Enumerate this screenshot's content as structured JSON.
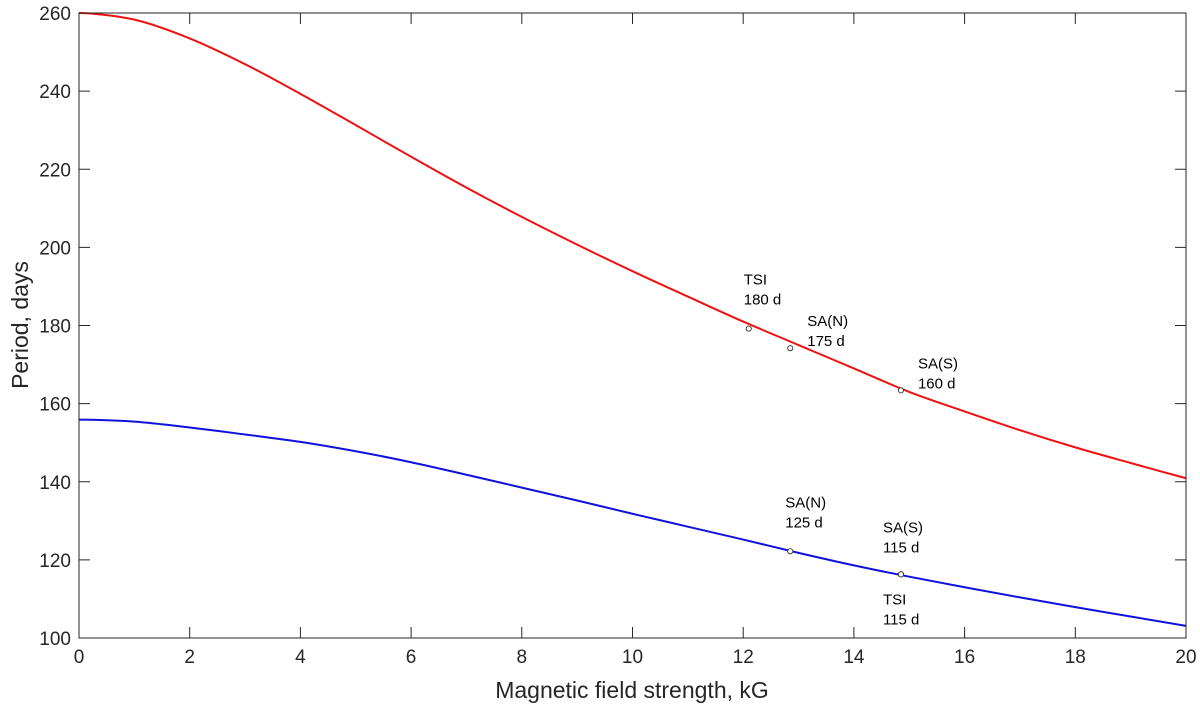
{
  "chart_data": {
    "type": "line",
    "title": "",
    "xlabel": "Magnetic field strength, kG",
    "ylabel": "Period, days",
    "xlim": [
      0,
      20
    ],
    "ylim": [
      100,
      260
    ],
    "xticks": [
      0,
      2,
      4,
      6,
      8,
      10,
      12,
      14,
      16,
      18,
      20
    ],
    "yticks": [
      100,
      120,
      140,
      160,
      180,
      200,
      220,
      240,
      260
    ],
    "grid": false,
    "series": [
      {
        "name": "upper",
        "color": "#ee1111",
        "x": [
          0,
          1,
          2,
          3,
          4,
          5,
          6,
          7,
          8,
          9,
          10,
          11,
          12,
          13,
          14,
          15,
          16,
          17,
          18,
          19,
          20
        ],
        "y": [
          260,
          258.3,
          253.5,
          246.9,
          239.3,
          231.3,
          223.2,
          215.3,
          207.8,
          200.7,
          193.9,
          187.4,
          181.0,
          175.0,
          169.0,
          163.0,
          158.0,
          153.2,
          148.8,
          144.8,
          140.9
        ]
      },
      {
        "name": "lower",
        "color": "#1111dd",
        "x": [
          0,
          1,
          2,
          3,
          4,
          5,
          6,
          7,
          8,
          9,
          10,
          11,
          12,
          13,
          14,
          15,
          16,
          17,
          18,
          19,
          20
        ],
        "y": [
          155.9,
          155.4,
          153.9,
          152.1,
          150.2,
          147.8,
          145.0,
          141.8,
          138.5,
          135.2,
          131.8,
          128.5,
          125.2,
          121.8,
          118.6,
          115.7,
          113.0,
          110.4,
          107.9,
          105.5,
          103.1
        ]
      }
    ],
    "markers": [
      {
        "x": 12.1,
        "y": 179.2,
        "lines": [
          "TSI",
          "180 d"
        ],
        "position": "above"
      },
      {
        "x": 12.85,
        "y": 174.2,
        "lines": [
          "SA(N)",
          "175 d"
        ],
        "position": "above-right"
      },
      {
        "x": 14.85,
        "y": 163.4,
        "lines": [
          "SA(S)",
          "160 d"
        ],
        "position": "above-right"
      },
      {
        "x": 12.85,
        "y": 122.2,
        "lines": [
          "SA(N)",
          "125 d"
        ],
        "position": "above"
      },
      {
        "x": 14.85,
        "y": 116.3,
        "lines": [
          "SA(S)",
          "115 d"
        ],
        "position": "above-left"
      },
      {
        "x": 14.85,
        "y": 116.3,
        "lines": [
          "TSI",
          "115 d"
        ],
        "position": "below-left"
      }
    ]
  }
}
